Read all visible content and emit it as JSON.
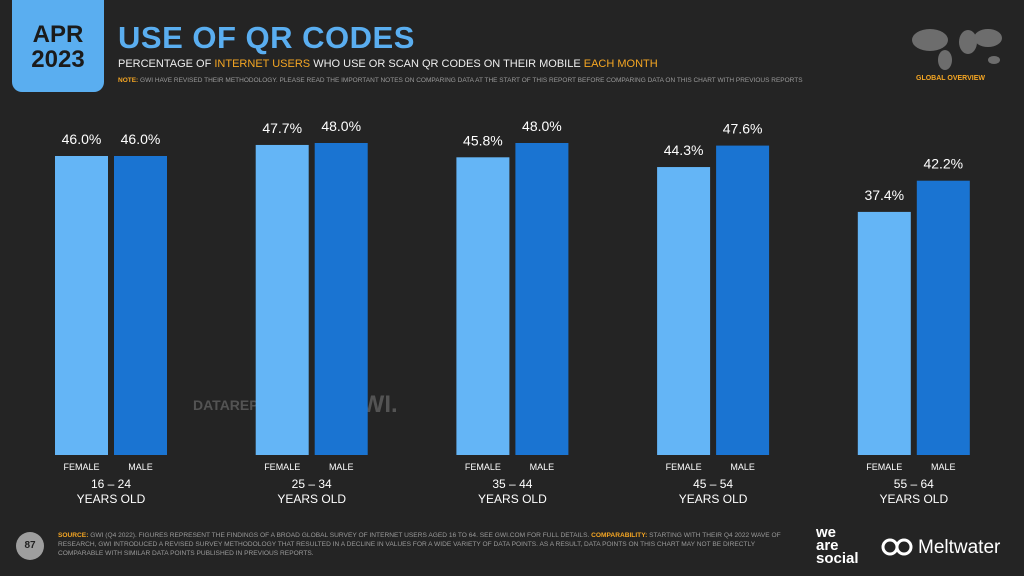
{
  "header": {
    "month": "APR",
    "year": "2023",
    "subtitle_parts": [
      "PERCENTAGE OF ",
      "INTERNET USERS",
      " WHO USE OR SCAN QR CODES ON THEIR MOBILE ",
      "EACH MONTH"
    ],
    "note_label": "NOTE:",
    "note": "GWI HAVE REVISED THEIR METHODOLOGY. PLEASE READ THE IMPORTANT NOTES ON COMPARING DATA AT THE START OF THIS REPORT BEFORE COMPARING DATA ON THIS CHART WITH PREVIOUS REPORTS",
    "badge": "GLOBAL OVERVIEW"
  },
  "chart_data": {
    "type": "bar",
    "title": "USE OF QR CODES",
    "categories": [
      "16 – 24",
      "25 – 34",
      "35 – 44",
      "45 – 54",
      "55 – 64"
    ],
    "category_suffix": "YEARS OLD",
    "series": [
      {
        "name": "FEMALE",
        "color": "#64b5f6",
        "values": [
          46.0,
          47.7,
          45.8,
          44.3,
          37.4
        ],
        "value_labels": [
          "46.0%",
          "47.7%",
          "45.8%",
          "44.3%",
          "37.4%"
        ]
      },
      {
        "name": "MALE",
        "color": "#1a74d2",
        "values": [
          46.0,
          48.0,
          48.0,
          47.6,
          42.2
        ],
        "value_labels": [
          "46.0%",
          "48.0%",
          "48.0%",
          "47.6%",
          "42.2%"
        ]
      }
    ]
  },
  "watermarks": [
    "DATAREPORTAL",
    "GWI."
  ],
  "footer": {
    "page": "87",
    "source_label": "SOURCE:",
    "source": "GWI (Q4 2022). FIGURES REPRESENT THE FINDINGS OF A BROAD GLOBAL SURVEY OF INTERNET USERS AGED 16 TO 64. SEE GWI.COM FOR FULL DETAILS.",
    "comparability_label": "COMPARABILITY:",
    "comparability": "STARTING WITH THEIR Q4 2022 WAVE OF RESEARCH, GWI INTRODUCED A REVISED SURVEY METHODOLOGY THAT RESULTED IN A DECLINE IN VALUES FOR A WIDE VARIETY OF DATA POINTS. AS A RESULT, DATA POINTS ON THIS CHART MAY NOT BE DIRECTLY COMPARABLE WITH SIMILAR DATA POINTS PUBLISHED IN PREVIOUS REPORTS.",
    "brand_lines": [
      "we",
      "are",
      "social"
    ],
    "partner": "Meltwater"
  }
}
